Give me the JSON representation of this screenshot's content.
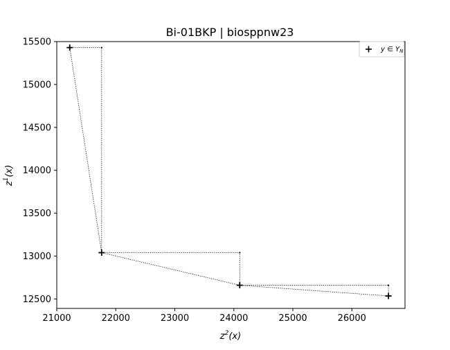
{
  "chart_data": {
    "type": "scatter",
    "title": "Bi-01BKP | biosppnw23",
    "xlabel_base": "z",
    "xlabel_sup": "2",
    "xlabel_tail": "(x)",
    "ylabel_base": "z",
    "ylabel_sup": "1",
    "ylabel_tail": "(x)",
    "xlim": [
      21000,
      26900
    ],
    "ylim": [
      12390,
      15500
    ],
    "xticks": [
      21000,
      22000,
      23000,
      24000,
      25000,
      26000
    ],
    "yticks": [
      12500,
      13000,
      13500,
      14000,
      14500,
      15000,
      15500
    ],
    "grid": false,
    "legend": {
      "position": "top-right",
      "label": "y ∈ Y_N",
      "marker": "plus"
    },
    "series": [
      {
        "name": "y ∈ Y_N",
        "marker": "plus",
        "color": "#000000",
        "points": [
          {
            "x": 21220,
            "y": 15430
          },
          {
            "x": 21760,
            "y": 13040
          },
          {
            "x": 24100,
            "y": 12660
          },
          {
            "x": 26620,
            "y": 12535
          }
        ]
      }
    ],
    "connector_line": {
      "style": "dotted",
      "color": "#000000"
    },
    "staircase": [
      {
        "x": 21760,
        "y": 15430
      },
      {
        "x": 24100,
        "y": 13040
      },
      {
        "x": 26620,
        "y": 12660
      }
    ]
  }
}
